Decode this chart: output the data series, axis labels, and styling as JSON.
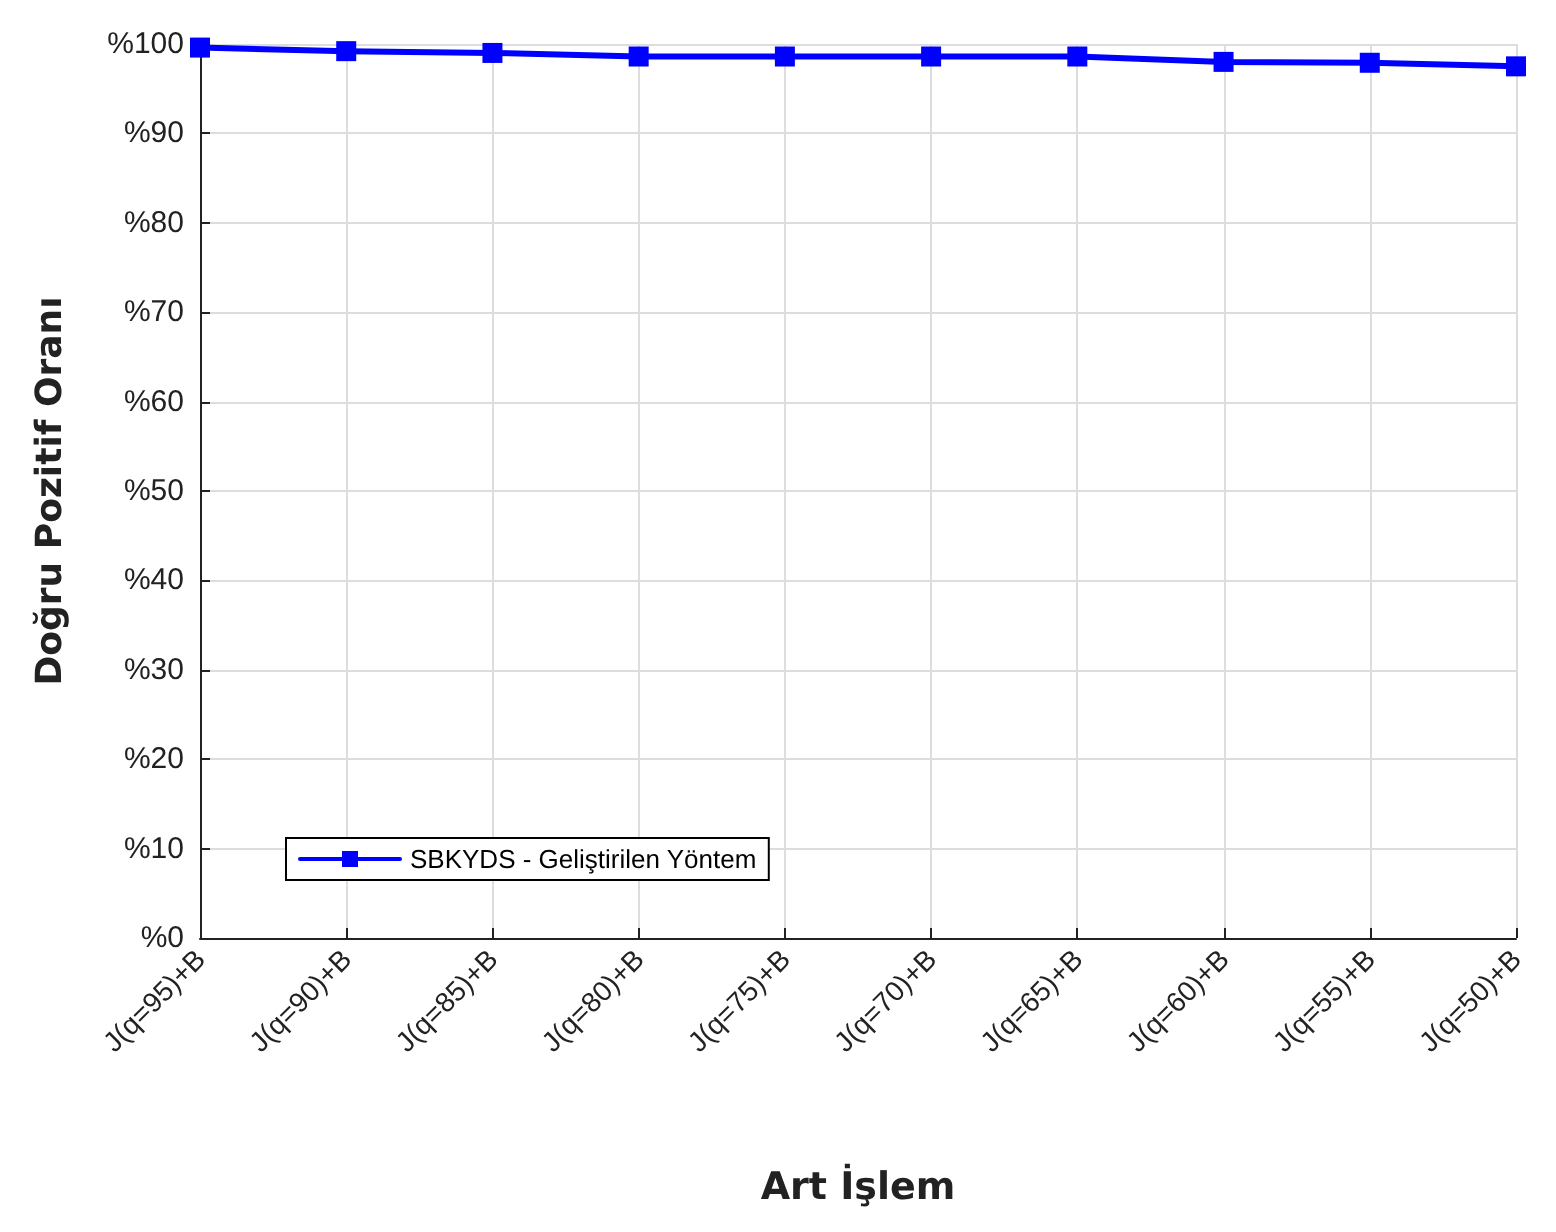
{
  "chart_data": {
    "type": "line",
    "xlabel": "Art İşlem",
    "ylabel": "Doğru Pozitif Oranı",
    "categories": [
      "J(q=95)+B",
      "J(q=90)+B",
      "J(q=85)+B",
      "J(q=80)+B",
      "J(q=75)+B",
      "J(q=70)+B",
      "J(q=65)+B",
      "J(q=60)+B",
      "J(q=55)+B",
      "J(q=50)+B"
    ],
    "series": [
      {
        "name": "SBKYDS - Geliştirilen Yöntem",
        "color": "#0000ff",
        "values": [
          99.6,
          99.2,
          99.0,
          98.6,
          98.6,
          98.6,
          98.6,
          98.0,
          97.9,
          97.5
        ]
      }
    ],
    "ylim": [
      0,
      100
    ],
    "yticks": [
      {
        "value": 0,
        "label": "%0"
      },
      {
        "value": 10,
        "label": "%10"
      },
      {
        "value": 20,
        "label": "%20"
      },
      {
        "value": 30,
        "label": "%30"
      },
      {
        "value": 40,
        "label": "%40"
      },
      {
        "value": 50,
        "label": "%50"
      },
      {
        "value": 60,
        "label": "%60"
      },
      {
        "value": 70,
        "label": "%70"
      },
      {
        "value": 80,
        "label": "%80"
      },
      {
        "value": 90,
        "label": "%90"
      },
      {
        "value": 100,
        "label": "%100"
      }
    ],
    "grid": true,
    "legend": "bottom left",
    "marker": "square",
    "line_style": "solid"
  }
}
